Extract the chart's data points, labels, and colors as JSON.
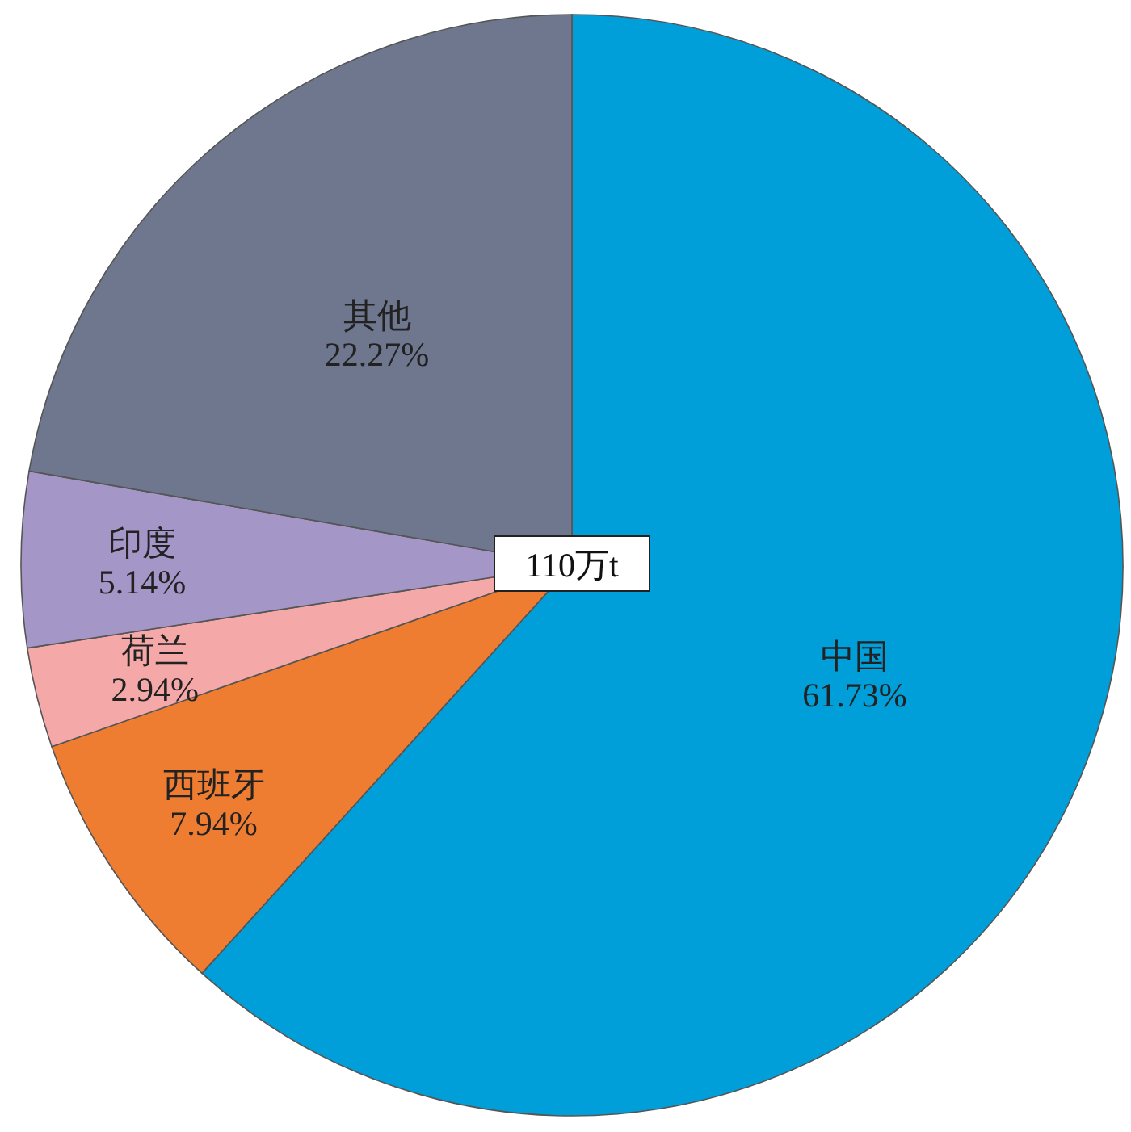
{
  "chart_data": {
    "type": "pie",
    "categories": [
      "中国",
      "西班牙",
      "荷兰",
      "印度",
      "其他"
    ],
    "values": [
      61.73,
      7.94,
      2.94,
      5.14,
      22.27
    ],
    "value_labels": [
      "61.73%",
      "7.94%",
      "2.94%",
      "5.14%",
      "22.27%"
    ],
    "colors": [
      "#009fd9",
      "#ee7d31",
      "#f4a8a8",
      "#a596c8",
      "#6e778e"
    ],
    "annotations": [
      "110万t"
    ]
  }
}
